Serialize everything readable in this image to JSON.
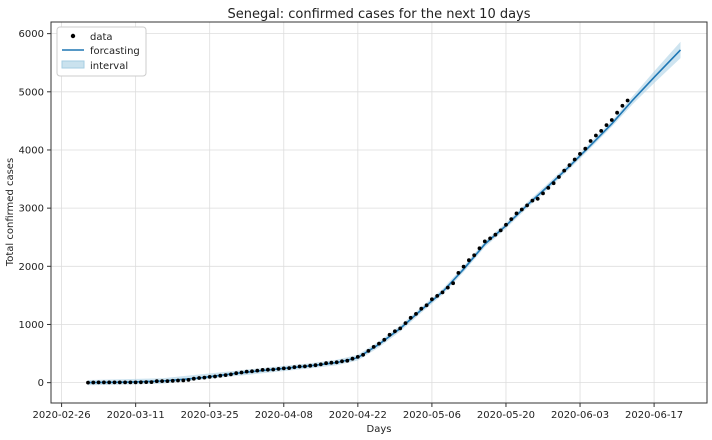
{
  "chart_data": {
    "type": "line",
    "title": "Senegal: confirmed cases for the next 10 days",
    "xlabel": "Days",
    "ylabel": "Total confirmed cases",
    "xlim": [
      "2020-02-24",
      "2020-06-27"
    ],
    "ylim": [
      -350,
      6200
    ],
    "grid": true,
    "legend_position": "top-left",
    "x_ticks": [
      "2020-02-26",
      "2020-03-11",
      "2020-03-25",
      "2020-04-08",
      "2020-04-22",
      "2020-05-06",
      "2020-05-20",
      "2020-06-03",
      "2020-06-17"
    ],
    "y_ticks": [
      0,
      1000,
      2000,
      3000,
      4000,
      5000,
      6000
    ],
    "legend": [
      {
        "label": "data",
        "marker": "dot"
      },
      {
        "label": "forcasting",
        "marker": "line"
      },
      {
        "label": "interval",
        "marker": "patch"
      }
    ],
    "colors": {
      "data": "#000000",
      "forecast": "#1f77b4",
      "interval": "#a6cee3",
      "grid": "#dddddd"
    },
    "series": [
      {
        "name": "data",
        "kind": "scatter",
        "points": [
          [
            "2020-03-02",
            0
          ],
          [
            "2020-03-03",
            2
          ],
          [
            "2020-03-04",
            4
          ],
          [
            "2020-03-05",
            4
          ],
          [
            "2020-03-06",
            4
          ],
          [
            "2020-03-07",
            4
          ],
          [
            "2020-03-08",
            4
          ],
          [
            "2020-03-09",
            4
          ],
          [
            "2020-03-10",
            4
          ],
          [
            "2020-03-11",
            4
          ],
          [
            "2020-03-12",
            6
          ],
          [
            "2020-03-13",
            10
          ],
          [
            "2020-03-14",
            10
          ],
          [
            "2020-03-15",
            24
          ],
          [
            "2020-03-16",
            26
          ],
          [
            "2020-03-17",
            27
          ],
          [
            "2020-03-18",
            31
          ],
          [
            "2020-03-19",
            36
          ],
          [
            "2020-03-20",
            38
          ],
          [
            "2020-03-21",
            47
          ],
          [
            "2020-03-22",
            67
          ],
          [
            "2020-03-23",
            79
          ],
          [
            "2020-03-24",
            86
          ],
          [
            "2020-03-25",
            99
          ],
          [
            "2020-03-26",
            105
          ],
          [
            "2020-03-27",
            119
          ],
          [
            "2020-03-28",
            130
          ],
          [
            "2020-03-29",
            142
          ],
          [
            "2020-03-30",
            162
          ],
          [
            "2020-03-31",
            175
          ],
          [
            "2020-04-01",
            190
          ],
          [
            "2020-04-02",
            195
          ],
          [
            "2020-04-03",
            207
          ],
          [
            "2020-04-04",
            219
          ],
          [
            "2020-04-05",
            222
          ],
          [
            "2020-04-06",
            226
          ],
          [
            "2020-04-07",
            237
          ],
          [
            "2020-04-08",
            244
          ],
          [
            "2020-04-09",
            250
          ],
          [
            "2020-04-10",
            265
          ],
          [
            "2020-04-11",
            278
          ],
          [
            "2020-04-12",
            280
          ],
          [
            "2020-04-13",
            291
          ],
          [
            "2020-04-14",
            299
          ],
          [
            "2020-04-15",
            314
          ],
          [
            "2020-04-16",
            335
          ],
          [
            "2020-04-17",
            342
          ],
          [
            "2020-04-18",
            350
          ],
          [
            "2020-04-19",
            367
          ],
          [
            "2020-04-20",
            377
          ],
          [
            "2020-04-21",
            412
          ],
          [
            "2020-04-22",
            442
          ],
          [
            "2020-04-23",
            479
          ],
          [
            "2020-04-24",
            545
          ],
          [
            "2020-04-25",
            614
          ],
          [
            "2020-04-26",
            671
          ],
          [
            "2020-04-27",
            736
          ],
          [
            "2020-04-28",
            823
          ],
          [
            "2020-04-29",
            882
          ],
          [
            "2020-04-30",
            933
          ],
          [
            "2020-05-01",
            1024
          ],
          [
            "2020-05-02",
            1115
          ],
          [
            "2020-05-03",
            1182
          ],
          [
            "2020-05-04",
            1271
          ],
          [
            "2020-05-05",
            1329
          ],
          [
            "2020-05-06",
            1433
          ],
          [
            "2020-05-07",
            1492
          ],
          [
            "2020-05-08",
            1551
          ],
          [
            "2020-05-09",
            1634
          ],
          [
            "2020-05-10",
            1709
          ],
          [
            "2020-05-11",
            1886
          ],
          [
            "2020-05-12",
            1995
          ],
          [
            "2020-05-13",
            2105
          ],
          [
            "2020-05-14",
            2189
          ],
          [
            "2020-05-15",
            2310
          ],
          [
            "2020-05-16",
            2429
          ],
          [
            "2020-05-17",
            2480
          ],
          [
            "2020-05-18",
            2544
          ],
          [
            "2020-05-19",
            2617
          ],
          [
            "2020-05-20",
            2714
          ],
          [
            "2020-05-21",
            2812
          ],
          [
            "2020-05-22",
            2909
          ],
          [
            "2020-05-23",
            2976
          ],
          [
            "2020-05-24",
            3047
          ],
          [
            "2020-05-25",
            3130
          ],
          [
            "2020-05-26",
            3161
          ],
          [
            "2020-05-27",
            3253
          ],
          [
            "2020-05-28",
            3348
          ],
          [
            "2020-05-29",
            3429
          ],
          [
            "2020-05-30",
            3535
          ],
          [
            "2020-05-31",
            3645
          ],
          [
            "2020-06-01",
            3739
          ],
          [
            "2020-06-02",
            3836
          ],
          [
            "2020-06-03",
            3932
          ],
          [
            "2020-06-04",
            4021
          ],
          [
            "2020-06-05",
            4155
          ],
          [
            "2020-06-06",
            4249
          ],
          [
            "2020-06-07",
            4328
          ],
          [
            "2020-06-08",
            4427
          ],
          [
            "2020-06-09",
            4515
          ],
          [
            "2020-06-10",
            4640
          ],
          [
            "2020-06-11",
            4759
          ],
          [
            "2020-06-12",
            4851
          ]
        ]
      },
      {
        "name": "forcasting",
        "kind": "line",
        "points": [
          [
            "2020-03-02",
            0
          ],
          [
            "2020-03-09",
            8
          ],
          [
            "2020-03-16",
            28
          ],
          [
            "2020-03-23",
            80
          ],
          [
            "2020-03-30",
            160
          ],
          [
            "2020-04-06",
            228
          ],
          [
            "2020-04-13",
            290
          ],
          [
            "2020-04-18",
            345
          ],
          [
            "2020-04-22",
            430
          ],
          [
            "2020-04-26",
            660
          ],
          [
            "2020-04-30",
            930
          ],
          [
            "2020-05-04",
            1250
          ],
          [
            "2020-05-08",
            1560
          ],
          [
            "2020-05-12",
            1950
          ],
          [
            "2020-05-16",
            2380
          ],
          [
            "2020-05-20",
            2700
          ],
          [
            "2020-05-24",
            3050
          ],
          [
            "2020-05-28",
            3380
          ],
          [
            "2020-06-01",
            3720
          ],
          [
            "2020-06-05",
            4080
          ],
          [
            "2020-06-09",
            4450
          ],
          [
            "2020-06-13",
            4860
          ],
          [
            "2020-06-17",
            5250
          ],
          [
            "2020-06-22",
            5720
          ]
        ]
      },
      {
        "name": "interval",
        "kind": "band",
        "points": [
          [
            "2020-03-02",
            -45,
            45
          ],
          [
            "2020-03-16",
            -20,
            75
          ],
          [
            "2020-03-30",
            115,
            205
          ],
          [
            "2020-04-13",
            245,
            335
          ],
          [
            "2020-04-18",
            298,
            392
          ],
          [
            "2020-04-22",
            380,
            480
          ],
          [
            "2020-04-26",
            610,
            710
          ],
          [
            "2020-04-30",
            880,
            980
          ],
          [
            "2020-05-04",
            1200,
            1300
          ],
          [
            "2020-05-08",
            1510,
            1610
          ],
          [
            "2020-05-12",
            1900,
            2000
          ],
          [
            "2020-05-16",
            2330,
            2430
          ],
          [
            "2020-05-20",
            2650,
            2750
          ],
          [
            "2020-05-24",
            3000,
            3100
          ],
          [
            "2020-05-28",
            3330,
            3430
          ],
          [
            "2020-06-01",
            3670,
            3770
          ],
          [
            "2020-06-05",
            4030,
            4130
          ],
          [
            "2020-06-09",
            4400,
            4500
          ],
          [
            "2020-06-13",
            4790,
            4930
          ],
          [
            "2020-06-17",
            5150,
            5350
          ],
          [
            "2020-06-22",
            5580,
            5860
          ]
        ]
      }
    ]
  }
}
